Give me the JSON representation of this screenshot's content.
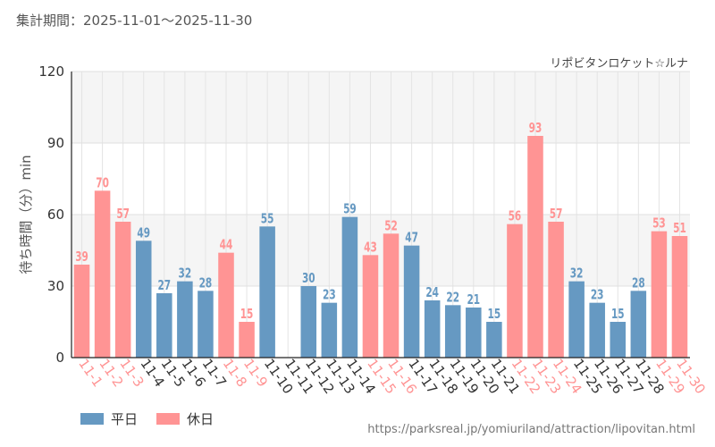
{
  "period_label": "集計期間：2025-11-01～2025-11-30",
  "attraction_name": "リポビタンロケット☆ルナ",
  "source_url": "https://parksreal.jp/yomiuriland/attraction/lipovitan.html",
  "legend": {
    "weekday": "平日",
    "holiday": "休日"
  },
  "colors": {
    "weekday": "#6699c2",
    "holiday": "#ff9494",
    "band": "#f5f5f5"
  },
  "chart_data": {
    "type": "bar",
    "ylabel": "待ち時間（分）min",
    "ylim": [
      0,
      120
    ],
    "yticks": [
      0,
      30,
      60,
      90,
      120
    ],
    "categories": [
      "11-1",
      "11-2",
      "11-3",
      "11-4",
      "11-5",
      "11-6",
      "11-7",
      "11-8",
      "11-9",
      "11-10",
      "11-11",
      "11-12",
      "11-13",
      "11-14",
      "11-15",
      "11-16",
      "11-17",
      "11-18",
      "11-19",
      "11-20",
      "11-21",
      "11-22",
      "11-23",
      "11-24",
      "11-25",
      "11-26",
      "11-27",
      "11-28",
      "11-29",
      "11-30"
    ],
    "values": [
      39,
      70,
      57,
      49,
      27,
      32,
      28,
      44,
      15,
      55,
      null,
      30,
      23,
      59,
      43,
      52,
      47,
      24,
      22,
      21,
      15,
      56,
      93,
      57,
      32,
      23,
      15,
      28,
      53,
      51
    ],
    "day_type": [
      "holiday",
      "holiday",
      "holiday",
      "weekday",
      "weekday",
      "weekday",
      "weekday",
      "holiday",
      "holiday",
      "weekday",
      "weekday",
      "weekday",
      "weekday",
      "weekday",
      "holiday",
      "holiday",
      "weekday",
      "weekday",
      "weekday",
      "weekday",
      "weekday",
      "holiday",
      "holiday",
      "holiday",
      "weekday",
      "weekday",
      "weekday",
      "weekday",
      "holiday",
      "holiday"
    ],
    "legend_position": "bottom-left"
  }
}
